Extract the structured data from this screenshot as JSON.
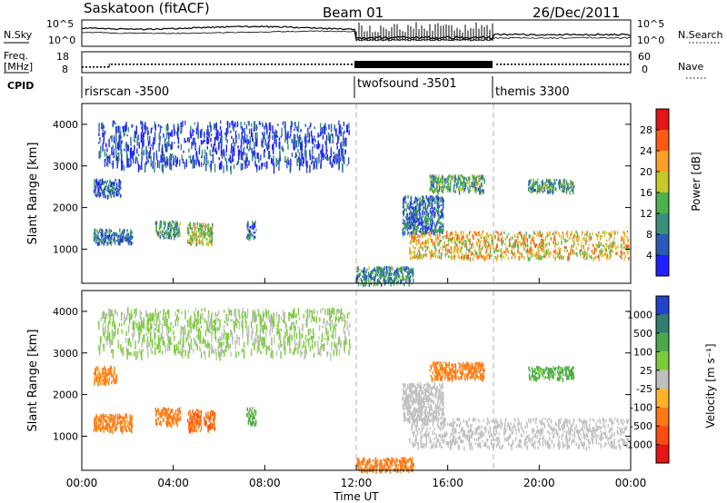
{
  "header": {
    "title": "Saskatoon (fitACF)",
    "beam": "Beam 01",
    "date": "26/Dec/2011"
  },
  "noise_panel": {
    "left_label": "N.Sky",
    "right_label": "N.Search",
    "left_ticks": [
      "10^5",
      "10^0"
    ],
    "right_ticks": [
      "10^5",
      "10^0"
    ]
  },
  "freq_panel": {
    "left_label_line1": "Freq.",
    "left_label_line2": "[MHz]",
    "right_label": "Nave",
    "left_ticks": [
      "18",
      "8"
    ],
    "right_ticks": [
      "60",
      "0"
    ]
  },
  "cpid": {
    "label": "CPID",
    "segments": [
      {
        "name": "risrscan -3500",
        "start_h": 0
      },
      {
        "name": "twofsound -3501",
        "start_h": 12
      },
      {
        "name": "themis 3300",
        "start_h": 18
      }
    ]
  },
  "chart_data": [
    {
      "type": "heatmap",
      "title": "",
      "quantity": "Power",
      "ylabel": "Slant Range [km]",
      "xlabel": "",
      "xlim_hours": [
        0,
        24
      ],
      "ylim_km": [
        180,
        4500
      ],
      "yticks": [
        "1000",
        "2000",
        "3000",
        "4000"
      ],
      "colorbar": {
        "label": "Power [dB]",
        "ticks": [
          "4",
          "8",
          "12",
          "16",
          "20",
          "24",
          "28"
        ],
        "colors": [
          "#1f1fff",
          "#2a5bb8",
          "#3a8f7a",
          "#4cb24c",
          "#c8c828",
          "#ffa028",
          "#ff5a14",
          "#e61414"
        ]
      },
      "regions": [
        {
          "t0": 0.7,
          "t1": 11.7,
          "r0": 3000,
          "r1": 4100,
          "value": 4
        },
        {
          "t0": 0.5,
          "t1": 1.7,
          "r0": 2300,
          "r1": 2700,
          "value": 6
        },
        {
          "t0": 0.5,
          "t1": 2.2,
          "r0": 1150,
          "r1": 1500,
          "value": 8
        },
        {
          "t0": 3.2,
          "t1": 4.3,
          "r0": 1300,
          "r1": 1700,
          "value": 12
        },
        {
          "t0": 4.6,
          "t1": 5.7,
          "r0": 1150,
          "r1": 1650,
          "value": 16
        },
        {
          "t0": 7.2,
          "t1": 7.6,
          "r0": 1300,
          "r1": 1700,
          "value": 8
        },
        {
          "t0": 12.0,
          "t1": 14.5,
          "r0": 180,
          "r1": 600,
          "value": 10
        },
        {
          "t0": 14.3,
          "t1": 23.9,
          "r0": 800,
          "r1": 1450,
          "value": 20
        },
        {
          "t0": 14.0,
          "t1": 15.8,
          "r0": 1400,
          "r1": 2300,
          "value": 8
        },
        {
          "t0": 15.2,
          "t1": 17.6,
          "r0": 2400,
          "r1": 2800,
          "value": 12
        },
        {
          "t0": 19.5,
          "t1": 21.5,
          "r0": 2400,
          "r1": 2700,
          "value": 12
        }
      ]
    },
    {
      "type": "heatmap",
      "title": "",
      "quantity": "Velocity",
      "ylabel": "Slant Range [km]",
      "xlabel": "Time UT",
      "xlim_hours": [
        0,
        24
      ],
      "ylim_km": [
        180,
        4500
      ],
      "xticks": [
        "00:00",
        "04:00",
        "08:00",
        "12:00",
        "16:00",
        "20:00",
        "00:00"
      ],
      "yticks": [
        "1000",
        "2000",
        "3000",
        "4000"
      ],
      "colorbar": {
        "label": "Velocity [m s⁻¹]",
        "ticks": [
          "1000",
          "500",
          "100",
          "25",
          "-25",
          "-100",
          "-500",
          "-1000"
        ],
        "colors": [
          "#2244cc",
          "#2f7f6f",
          "#4aa84a",
          "#7ccc3a",
          "#c0c0c0",
          "#ffb428",
          "#ff7a14",
          "#ff4a10",
          "#e61414"
        ]
      },
      "regions": [
        {
          "t0": 0.7,
          "t1": 11.7,
          "r0": 3000,
          "r1": 4100,
          "value": 30
        },
        {
          "t0": 0.5,
          "t1": 1.5,
          "r0": 2300,
          "r1": 2700,
          "value": -150
        },
        {
          "t0": 0.5,
          "t1": 2.2,
          "r0": 1150,
          "r1": 1550,
          "value": -200
        },
        {
          "t0": 3.2,
          "t1": 4.3,
          "r0": 1300,
          "r1": 1700,
          "value": -300
        },
        {
          "t0": 4.6,
          "t1": 5.8,
          "r0": 1150,
          "r1": 1650,
          "value": -400
        },
        {
          "t0": 7.2,
          "t1": 7.6,
          "r0": 1300,
          "r1": 1700,
          "value": 150
        },
        {
          "t0": 12.0,
          "t1": 14.5,
          "r0": 180,
          "r1": 500,
          "value": -300
        },
        {
          "t0": 14.3,
          "t1": 23.9,
          "r0": 750,
          "r1": 1450,
          "value": 0
        },
        {
          "t0": 14.0,
          "t1": 15.8,
          "r0": 1400,
          "r1": 2300,
          "value": 0
        },
        {
          "t0": 15.2,
          "t1": 17.6,
          "r0": 2400,
          "r1": 2800,
          "value": -200
        },
        {
          "t0": 19.5,
          "t1": 21.5,
          "r0": 2400,
          "r1": 2700,
          "value": 150
        }
      ]
    }
  ]
}
